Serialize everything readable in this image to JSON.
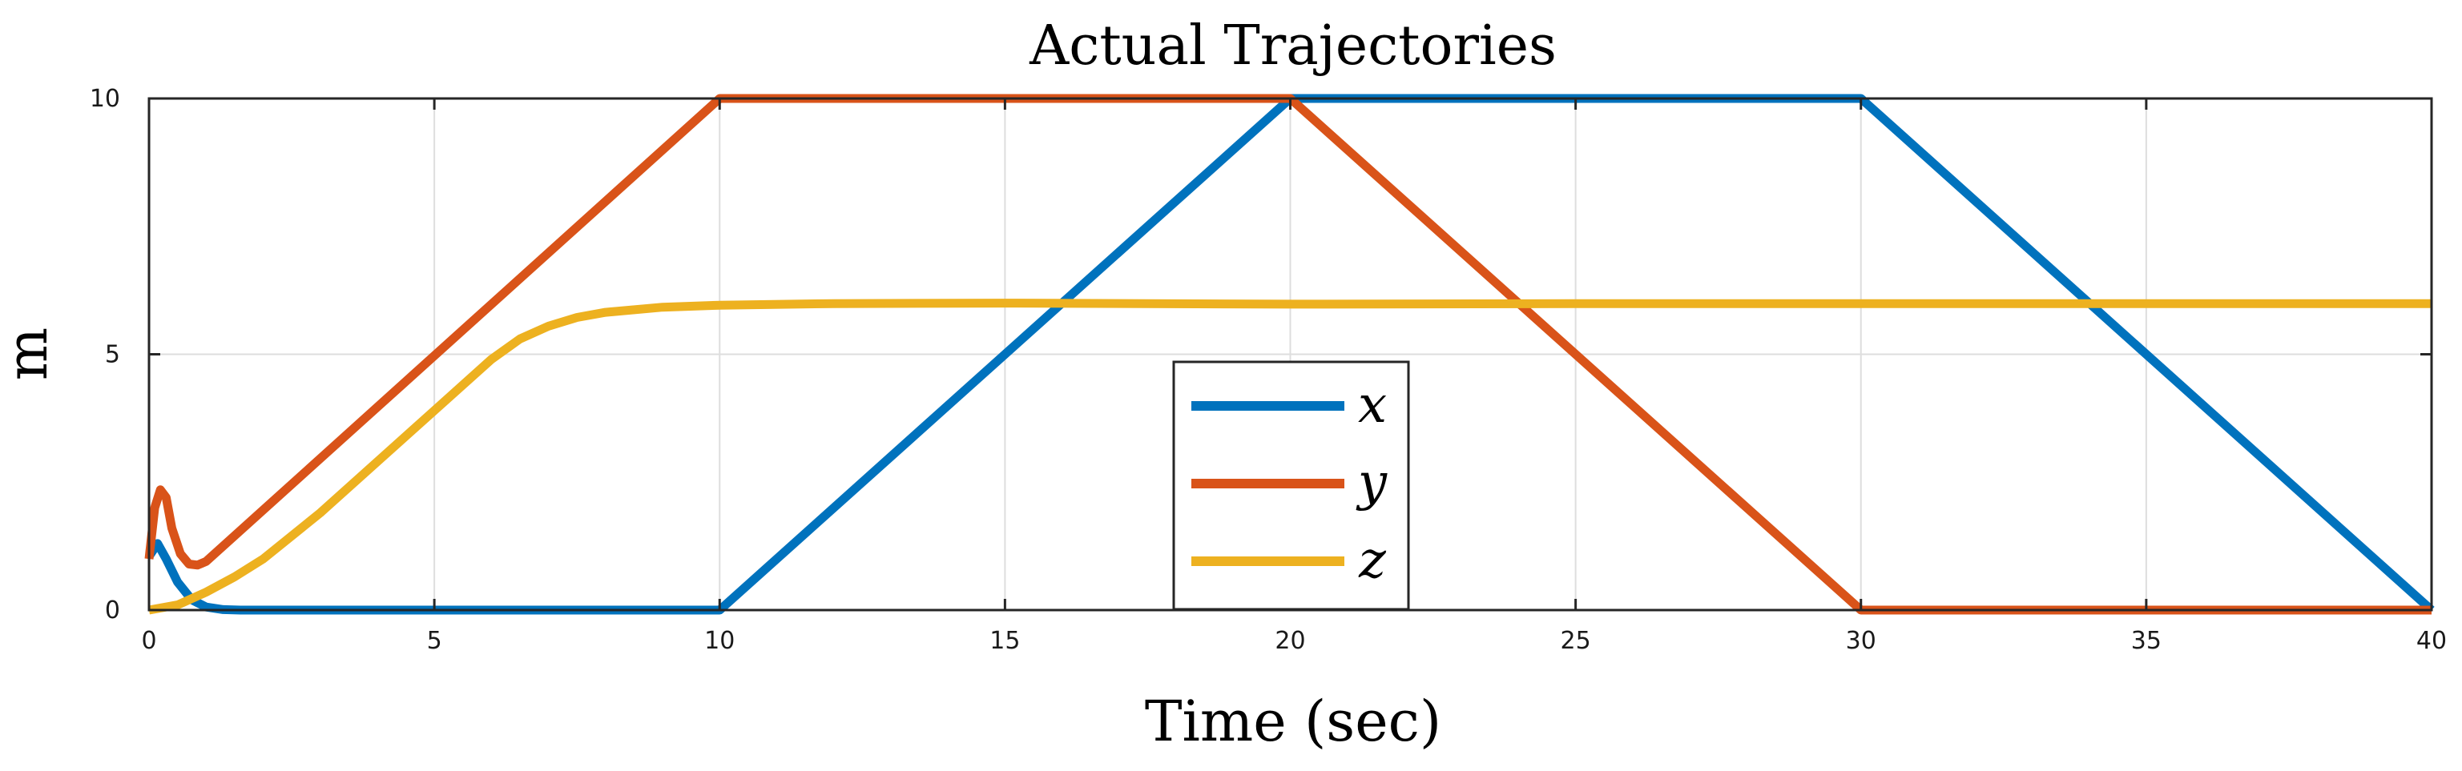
{
  "chart_data": {
    "type": "line",
    "title": "Actual Trajectories",
    "xlabel": "Time (sec)",
    "ylabel": "m",
    "xlim": [
      0,
      40
    ],
    "ylim": [
      0,
      10
    ],
    "xticks": [
      0,
      5,
      10,
      15,
      20,
      25,
      30,
      35,
      40
    ],
    "yticks": [
      0,
      5,
      10
    ],
    "grid": true,
    "legend_position": "bottom-center",
    "series": [
      {
        "name": "x",
        "color": "#0072BD",
        "x": [
          0,
          0.15,
          0.3,
          0.5,
          0.75,
          1.0,
          1.3,
          1.6,
          2.0,
          10.0,
          20.0,
          30.0,
          40.0
        ],
        "y": [
          1.05,
          1.3,
          1.0,
          0.55,
          0.2,
          0.06,
          0.01,
          0.0,
          0.0,
          0.0,
          10.0,
          10.0,
          0.0
        ]
      },
      {
        "name": "y",
        "color": "#D95319",
        "x": [
          0,
          0.1,
          0.2,
          0.3,
          0.4,
          0.55,
          0.7,
          0.85,
          1.0,
          10.0,
          20.0,
          30.0,
          40.0
        ],
        "y": [
          1.0,
          2.0,
          2.35,
          2.2,
          1.6,
          1.1,
          0.9,
          0.88,
          0.95,
          10.0,
          10.0,
          0.0,
          0.0
        ]
      },
      {
        "name": "z",
        "color": "#EDB120",
        "x": [
          0,
          0.5,
          1.0,
          1.5,
          2.0,
          3.0,
          4.0,
          5.0,
          6.0,
          6.5,
          7.0,
          7.5,
          8.0,
          9.0,
          10.0,
          12.0,
          15.0,
          20.0,
          25.0,
          30.0,
          35.0,
          40.0
        ],
        "y": [
          0.0,
          0.1,
          0.35,
          0.65,
          1.0,
          1.9,
          2.9,
          3.9,
          4.9,
          5.3,
          5.55,
          5.72,
          5.82,
          5.92,
          5.96,
          5.99,
          6.0,
          5.98,
          5.99,
          5.99,
          5.99,
          5.99
        ]
      }
    ]
  }
}
